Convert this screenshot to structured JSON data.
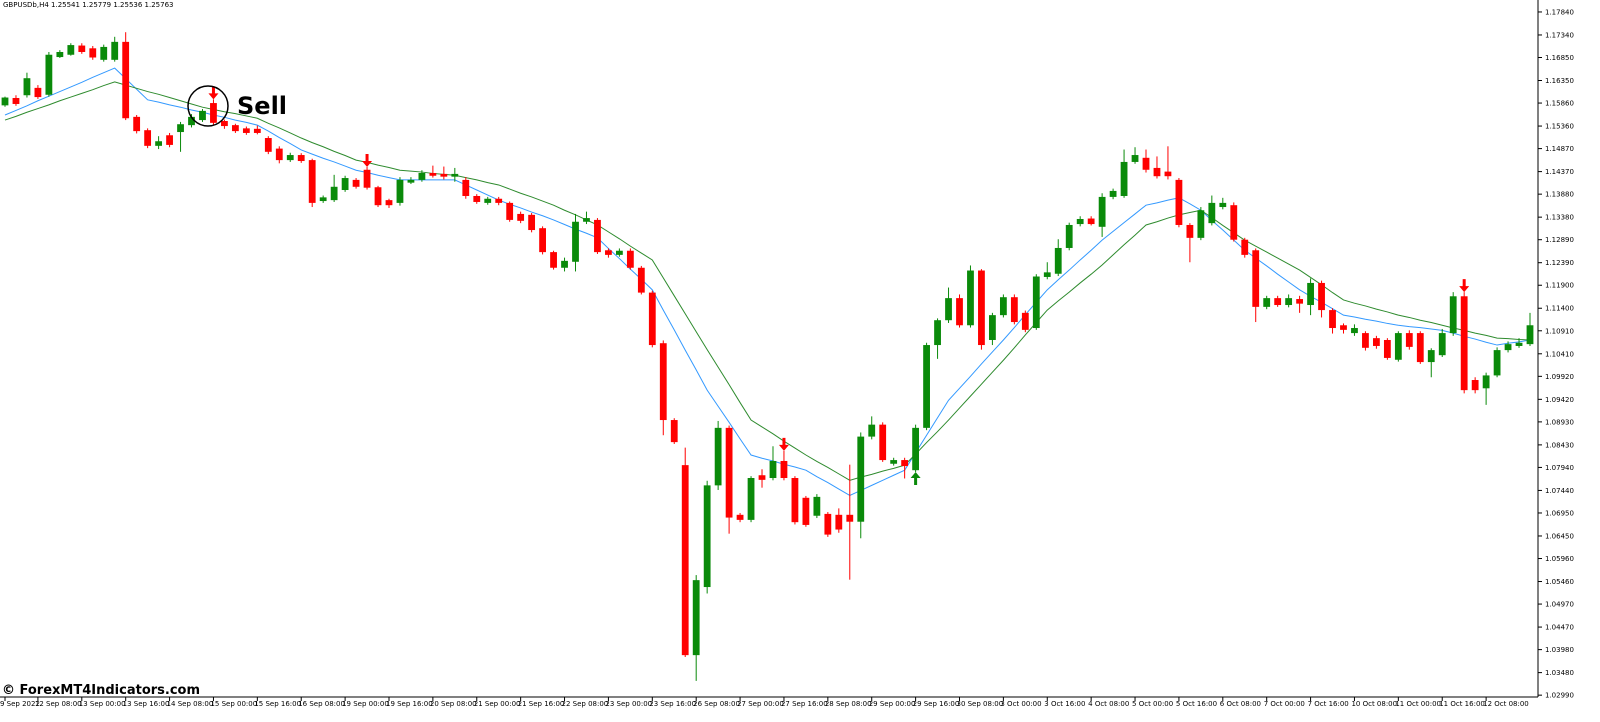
{
  "chart_data": {
    "type": "candlestick",
    "title": "GBPUSDb,H4  1.25541 1.25779 1.25536 1.25763",
    "annotation": "Sell",
    "watermark": "© ForexMT4Indicators.com",
    "up_color": "#0a8a0a",
    "down_color": "#ff0000",
    "categories": [
      "9 Sep 2022",
      null,
      null,
      "12 Sep 08:00",
      null,
      null,
      null,
      "13 Sep 00:00",
      null,
      null,
      null,
      "13 Sep 16:00",
      null,
      null,
      null,
      "14 Sep 08:00",
      null,
      null,
      null,
      "15 Sep 00:00",
      null,
      null,
      null,
      "15 Sep 16:00",
      null,
      null,
      null,
      "16 Sep 08:00",
      null,
      null,
      null,
      "19 Sep 00:00",
      null,
      null,
      null,
      "19 Sep 16:00",
      null,
      null,
      null,
      "20 Sep 08:00",
      null,
      null,
      null,
      "21 Sep 00:00",
      null,
      null,
      null,
      "21 Sep 16:00",
      null,
      null,
      null,
      "22 Sep 08:00",
      null,
      null,
      null,
      "23 Sep 00:00",
      null,
      null,
      null,
      "23 Sep 16:00",
      null,
      null,
      null,
      "26 Sep 08:00",
      null,
      null,
      null,
      "27 Sep 00:00",
      null,
      null,
      null,
      "27 Sep 16:00",
      null,
      null,
      null,
      "28 Sep 08:00",
      null,
      null,
      null,
      "29 Sep 00:00",
      null,
      null,
      null,
      "29 Sep 16:00",
      null,
      null,
      null,
      "30 Sep 08:00",
      null,
      null,
      null,
      "3 Oct 00:00",
      null,
      null,
      null,
      "3 Oct 16:00",
      null,
      null,
      null,
      "4 Oct 08:00",
      null,
      null,
      null,
      "5 Oct 00:00",
      null,
      null,
      null,
      "5 Oct 16:00",
      null,
      null,
      null,
      "6 Oct 08:00",
      null,
      null,
      null,
      "7 Oct 00:00",
      null,
      null,
      null,
      "7 Oct 16:00",
      null,
      null,
      null,
      "10 Oct 08:00",
      null,
      null,
      null,
      "11 Oct 00:00",
      null,
      null,
      null,
      "11 Oct 16:00",
      null,
      null,
      null,
      "12 Oct 08:00",
      null,
      null,
      null,
      null
    ],
    "open": [
      1.1581,
      1.1597,
      1.1603,
      1.1619,
      1.1604,
      1.1686,
      1.1691,
      1.1711,
      1.1705,
      1.168,
      1.168,
      1.1719,
      1.1556,
      1.1527,
      1.1493,
      1.1516,
      1.1523,
      1.1538,
      1.1549,
      1.1586,
      1.1547,
      1.1538,
      1.1531,
      1.153,
      1.151,
      1.1487,
      1.1462,
      1.1473,
      1.1462,
      1.1373,
      1.1375,
      1.1397,
      1.1419,
      1.1441,
      1.1403,
      1.1375,
      1.1369,
      1.1413,
      1.1419,
      1.1434,
      1.1432,
      1.1426,
      1.1419,
      1.1384,
      1.1369,
      1.1378,
      1.1369,
      1.1345,
      1.1343,
      1.1314,
      1.1262,
      1.1228,
      1.1241,
      1.1328,
      1.1332,
      1.1266,
      1.1256,
      1.1265,
      1.1228,
      1.1174,
      1.1064,
      1.0897,
      1.0799,
      1.0386,
      1.0534,
      1.0755,
      1.088,
      1.0691,
      1.068,
      1.0777,
      1.0771,
      1.0808,
      1.0771,
      1.0728,
      1.0689,
      1.0693,
      1.0691,
      1.0691,
      1.0676,
      1.0861,
      1.0887,
      1.0802,
      1.081,
      1.0788,
      1.088,
      1.106,
      1.1114,
      1.1162,
      1.1103,
      1.1222,
      1.1071,
      1.1125,
      1.1164,
      1.113,
      1.1097,
      1.1208,
      1.1215,
      1.1271,
      1.1323,
      1.1335,
      1.1317,
      1.1382,
      1.1384,
      1.1458,
      1.1467,
      1.1445,
      1.1437,
      1.1419,
      1.1321,
      1.1293,
      1.1325,
      1.136,
      1.1364,
      1.1289,
      1.1266,
      1.1143,
      1.1162,
      1.1147,
      1.116,
      1.1147,
      1.1195,
      1.1136,
      1.1103,
      1.1086,
      1.1086,
      1.1075,
      1.1071,
      1.1028,
      1.1086,
      1.1086,
      1.1023,
      1.1038,
      1.1086,
      1.1166,
      1.0984,
      1.0966,
      1.0994,
      1.1049,
      1.1058,
      1.1062
    ],
    "high": [
      1.16,
      1.1603,
      1.1652,
      1.1625,
      1.1697,
      1.1701,
      1.1716,
      1.1716,
      1.171,
      1.1713,
      1.173,
      1.174,
      1.156,
      1.1531,
      1.1514,
      1.1521,
      1.1545,
      1.1562,
      1.1573,
      1.1594,
      1.155,
      1.1541,
      1.1535,
      1.1537,
      1.1514,
      1.1492,
      1.1478,
      1.1477,
      1.1465,
      1.1385,
      1.143,
      1.1428,
      1.1423,
      1.1447,
      1.1406,
      1.1378,
      1.1425,
      1.1425,
      1.144,
      1.145,
      1.1448,
      1.1445,
      1.1425,
      1.1388,
      1.1382,
      1.1382,
      1.1372,
      1.135,
      1.1347,
      1.1318,
      1.1265,
      1.125,
      1.1345,
      1.135,
      1.1336,
      1.127,
      1.127,
      1.127,
      1.1232,
      1.1178,
      1.107,
      1.0901,
      1.0837,
      1.056,
      1.0765,
      1.0895,
      1.0885,
      1.0695,
      1.0775,
      1.079,
      1.084,
      1.083,
      1.0775,
      1.0732,
      1.0736,
      1.0697,
      1.0705,
      1.08,
      1.087,
      1.0905,
      1.0892,
      1.0815,
      1.0815,
      1.0887,
      1.1065,
      1.1118,
      1.1185,
      1.117,
      1.1233,
      1.1225,
      1.113,
      1.117,
      1.117,
      1.1135,
      1.1214,
      1.124,
      1.129,
      1.1326,
      1.134,
      1.134,
      1.139,
      1.14,
      1.1485,
      1.149,
      1.1485,
      1.147,
      1.1492,
      1.1423,
      1.1325,
      1.136,
      1.1385,
      1.138,
      1.137,
      1.1293,
      1.127,
      1.1167,
      1.1167,
      1.117,
      1.1167,
      1.1205,
      1.12,
      1.114,
      1.1107,
      1.1105,
      1.109,
      1.108,
      1.1075,
      1.109,
      1.1092,
      1.109,
      1.1053,
      1.1095,
      1.1175,
      1.1175,
      1.099,
      1.1,
      1.1055,
      1.1068,
      1.1075,
      1.113
    ],
    "low": [
      1.1578,
      1.158,
      1.1598,
      1.1595,
      1.16,
      1.1684,
      1.1689,
      1.1693,
      1.168,
      1.1676,
      1.1676,
      1.1549,
      1.152,
      1.1488,
      1.1486,
      1.149,
      1.148,
      1.1533,
      1.1545,
      1.1538,
      1.153,
      1.1521,
      1.1517,
      1.1518,
      1.1475,
      1.1455,
      1.1458,
      1.1456,
      1.136,
      1.1369,
      1.1371,
      1.1393,
      1.14,
      1.1398,
      1.136,
      1.1358,
      1.1363,
      1.141,
      1.1415,
      1.1424,
      1.142,
      1.1415,
      1.1378,
      1.1367,
      1.1365,
      1.1364,
      1.1328,
      1.1325,
      1.1305,
      1.1257,
      1.1224,
      1.122,
      1.122,
      1.1323,
      1.1258,
      1.125,
      1.1252,
      1.1224,
      1.117,
      1.1055,
      1.0864,
      1.0845,
      1.0382,
      1.033,
      1.052,
      1.0745,
      1.065,
      1.0675,
      1.0675,
      1.075,
      1.0766,
      1.0766,
      1.067,
      1.0665,
      1.0684,
      1.0643,
      1.0652,
      1.055,
      1.064,
      1.0855,
      1.0806,
      1.0798,
      1.077,
      1.0784,
      1.0875,
      1.103,
      1.1108,
      1.1098,
      1.1098,
      1.105,
      1.106,
      1.112,
      1.1105,
      1.1088,
      1.1093,
      1.1203,
      1.121,
      1.1266,
      1.1318,
      1.132,
      1.1295,
      1.1377,
      1.138,
      1.1454,
      1.1435,
      1.1422,
      1.142,
      1.1316,
      1.124,
      1.1288,
      1.132,
      1.1355,
      1.1285,
      1.125,
      1.111,
      1.1138,
      1.1143,
      1.1142,
      1.113,
      1.1125,
      1.112,
      1.1085,
      1.1085,
      1.108,
      1.1048,
      1.1052,
      1.1028,
      1.1024,
      1.105,
      1.1019,
      1.099,
      1.1034,
      1.108,
      1.0955,
      1.0955,
      1.093,
      1.099,
      1.1044,
      1.1054,
      1.1058
    ],
    "close": [
      1.1598,
      1.1584,
      1.164,
      1.1599,
      1.1691,
      1.1697,
      1.1712,
      1.1697,
      1.1685,
      1.1708,
      1.1719,
      1.1553,
      1.1525,
      1.1493,
      1.1503,
      1.1495,
      1.154,
      1.1556,
      1.1569,
      1.1543,
      1.1536,
      1.1525,
      1.1521,
      1.1521,
      1.148,
      1.1462,
      1.1473,
      1.146,
      1.1369,
      1.1381,
      1.1404,
      1.1423,
      1.1404,
      1.1402,
      1.1364,
      1.1364,
      1.1419,
      1.1419,
      1.1434,
      1.1428,
      1.1426,
      1.1432,
      1.1384,
      1.1371,
      1.1378,
      1.1369,
      1.1332,
      1.133,
      1.131,
      1.1262,
      1.1228,
      1.1243,
      1.1328,
      1.1336,
      1.1262,
      1.1256,
      1.1265,
      1.1228,
      1.1174,
      1.106,
      1.0897,
      1.0849,
      1.0386,
      1.0549,
      1.0755,
      1.088,
      1.0685,
      1.068,
      1.0771,
      1.0767,
      1.0808,
      1.0771,
      1.0675,
      1.0669,
      1.073,
      1.0648,
      1.0659,
      1.0676,
      1.0861,
      1.0887,
      1.081,
      1.081,
      1.0797,
      1.088,
      1.106,
      1.1114,
      1.1162,
      1.1103,
      1.1222,
      1.106,
      1.1125,
      1.1164,
      1.111,
      1.1093,
      1.1209,
      1.1218,
      1.1271,
      1.1321,
      1.1334,
      1.1323,
      1.1382,
      1.1395,
      1.1458,
      1.1473,
      1.1441,
      1.1427,
      1.1427,
      1.1321,
      1.1293,
      1.1353,
      1.1369,
      1.1369,
      1.1289,
      1.1256,
      1.1143,
      1.1162,
      1.1147,
      1.1162,
      1.115,
      1.1195,
      1.1136,
      1.1097,
      1.1093,
      1.1097,
      1.1054,
      1.1058,
      1.1032,
      1.1086,
      1.1056,
      1.1023,
      1.1049,
      1.1086,
      1.1166,
      1.0962,
      1.0962,
      1.0994,
      1.1049,
      1.1062,
      1.1065,
      1.1103
    ],
    "series": [
      {
        "color": "#3399ff",
        "values": [
          1.156,
          1.157,
          1.158,
          1.1591,
          1.1601,
          1.1611,
          1.1621,
          1.1631,
          1.1642,
          1.1652,
          1.1662,
          1.1639,
          1.1616,
          1.1593,
          1.1588,
          1.1582,
          1.1577,
          1.1571,
          1.1566,
          1.156,
          1.1555,
          1.1549,
          1.1544,
          1.1538,
          1.1525,
          1.1511,
          1.1498,
          1.1484,
          1.1475,
          1.1466,
          1.1458,
          1.1449,
          1.144,
          1.1435,
          1.1429,
          1.1424,
          1.1419,
          1.1419,
          1.1419,
          1.1419,
          1.1419,
          1.1419,
          1.1408,
          1.1397,
          1.1386,
          1.1375,
          1.1366,
          1.1358,
          1.1349,
          1.1341,
          1.1332,
          1.1322,
          1.1312,
          1.1303,
          1.1293,
          1.127,
          1.1248,
          1.1225,
          1.1203,
          1.118,
          1.1136,
          1.1093,
          1.1049,
          1.1006,
          1.0962,
          1.0927,
          1.0892,
          1.0856,
          1.0821,
          1.0814,
          1.0808,
          1.0801,
          1.0795,
          1.0788,
          1.0774,
          1.0761,
          1.0747,
          1.0733,
          1.0744,
          1.0755,
          1.0766,
          1.0777,
          1.0788,
          1.0826,
          1.0864,
          1.0902,
          1.094,
          1.0966,
          1.0992,
          1.1019,
          1.1045,
          1.1071,
          1.1098,
          1.1126,
          1.1153,
          1.118,
          1.1202,
          1.1223,
          1.1245,
          1.1266,
          1.1288,
          1.1307,
          1.1326,
          1.1345,
          1.1364,
          1.1369,
          1.1375,
          1.138,
          1.1367,
          1.1353,
          1.1331,
          1.131,
          1.1288,
          1.1266,
          1.1249,
          1.1232,
          1.1214,
          1.1197,
          1.118,
          1.1166,
          1.1153,
          1.1139,
          1.1125,
          1.1121,
          1.1116,
          1.1112,
          1.1107,
          1.1103,
          1.11,
          1.1098,
          1.1095,
          1.1092,
          1.1086,
          1.1079,
          1.1073,
          1.1066,
          1.106,
          1.1064,
          1.1067,
          1.1071
        ]
      },
      {
        "color": "#2e8b2e",
        "values": [
          1.1549,
          1.1557,
          1.1566,
          1.1574,
          1.1582,
          1.1591,
          1.1599,
          1.1607,
          1.1615,
          1.1624,
          1.1632,
          1.1625,
          1.1618,
          1.1611,
          1.1605,
          1.1598,
          1.1591,
          1.1584,
          1.1577,
          1.1572,
          1.1567,
          1.1563,
          1.1558,
          1.1553,
          1.1542,
          1.1532,
          1.1521,
          1.151,
          1.15,
          1.1491,
          1.1481,
          1.1472,
          1.1462,
          1.1457,
          1.1451,
          1.1446,
          1.144,
          1.1438,
          1.1436,
          1.1433,
          1.1431,
          1.1429,
          1.1424,
          1.1419,
          1.1413,
          1.1408,
          1.1399,
          1.139,
          1.1382,
          1.1373,
          1.1364,
          1.1353,
          1.1343,
          1.1332,
          1.1321,
          1.1306,
          1.1291,
          1.1275,
          1.126,
          1.1245,
          1.1206,
          1.1167,
          1.1128,
          1.1089,
          1.105,
          1.1012,
          1.0974,
          1.0935,
          1.0897,
          1.0882,
          1.0867,
          1.0851,
          1.0836,
          1.0821,
          1.0807,
          1.0794,
          1.078,
          1.0766,
          1.0773,
          1.0779,
          1.0786,
          1.0792,
          1.0799,
          1.0823,
          1.0848,
          1.0872,
          1.0897,
          1.0923,
          1.0949,
          1.0975,
          1.1001,
          1.1027,
          1.1054,
          1.1082,
          1.1109,
          1.1136,
          1.1156,
          1.1175,
          1.1195,
          1.1214,
          1.1234,
          1.1256,
          1.1278,
          1.1299,
          1.1321,
          1.1328,
          1.1336,
          1.1343,
          1.1348,
          1.1353,
          1.1337,
          1.132,
          1.1304,
          1.1288,
          1.1275,
          1.1262,
          1.1249,
          1.1236,
          1.1223,
          1.1207,
          1.1191,
          1.1174,
          1.1158,
          1.1151,
          1.1145,
          1.1138,
          1.1132,
          1.1125,
          1.112,
          1.1114,
          1.1109,
          1.1103,
          1.1097,
          1.1092,
          1.1086,
          1.1081,
          1.1075,
          1.1074,
          1.1072,
          1.1071
        ]
      }
    ],
    "signals": [
      {
        "direction": "sell",
        "bar": 19,
        "price": 1.1594
      },
      {
        "direction": "sell",
        "bar": 33,
        "price": 1.1447
      },
      {
        "direction": "sell",
        "bar": 71,
        "price": 1.083
      },
      {
        "direction": "buy",
        "bar": 83,
        "price": 1.0784
      },
      {
        "direction": "sell",
        "bar": 133,
        "price": 1.1175
      }
    ],
    "ylim": [
      1.0295,
      1.181
    ],
    "yticks": [
      {
        "value": 1.1784,
        "label": "1.17840"
      },
      {
        "value": 1.1734,
        "label": "1.17340"
      },
      {
        "value": 1.1685,
        "label": "1.16850"
      },
      {
        "value": 1.1635,
        "label": "1.16350"
      },
      {
        "value": 1.1586,
        "label": "1.15860"
      },
      {
        "value": 1.1536,
        "label": "1.15360"
      },
      {
        "value": 1.1487,
        "label": "1.14870"
      },
      {
        "value": 1.1437,
        "label": "1.14370"
      },
      {
        "value": 1.1388,
        "label": "1.13880"
      },
      {
        "value": 1.1338,
        "label": "1.13380"
      },
      {
        "value": 1.1289,
        "label": "1.12890"
      },
      {
        "value": 1.1239,
        "label": "1.12390"
      },
      {
        "value": 1.119,
        "label": "1.11900"
      },
      {
        "value": 1.114,
        "label": "1.11400"
      },
      {
        "value": 1.1091,
        "label": "1.10910"
      },
      {
        "value": 1.1041,
        "label": "1.10410"
      },
      {
        "value": 1.0992,
        "label": "1.09920"
      },
      {
        "value": 1.0942,
        "label": "1.09420"
      },
      {
        "value": 1.0893,
        "label": "1.08930"
      },
      {
        "value": 1.0843,
        "label": "1.08430"
      },
      {
        "value": 1.0794,
        "label": "1.07940"
      },
      {
        "value": 1.0744,
        "label": "1.07440"
      },
      {
        "value": 1.0695,
        "label": "1.06950"
      },
      {
        "value": 1.0645,
        "label": "1.06450"
      },
      {
        "value": 1.0596,
        "label": "1.05960"
      },
      {
        "value": 1.0546,
        "label": "1.05460"
      },
      {
        "value": 1.0497,
        "label": "1.04970"
      },
      {
        "value": 1.0447,
        "label": "1.04470"
      },
      {
        "value": 1.0398,
        "label": "1.03980"
      },
      {
        "value": 1.0348,
        "label": "1.03480"
      },
      {
        "value": 1.0299,
        "label": "1.02990"
      }
    ]
  }
}
